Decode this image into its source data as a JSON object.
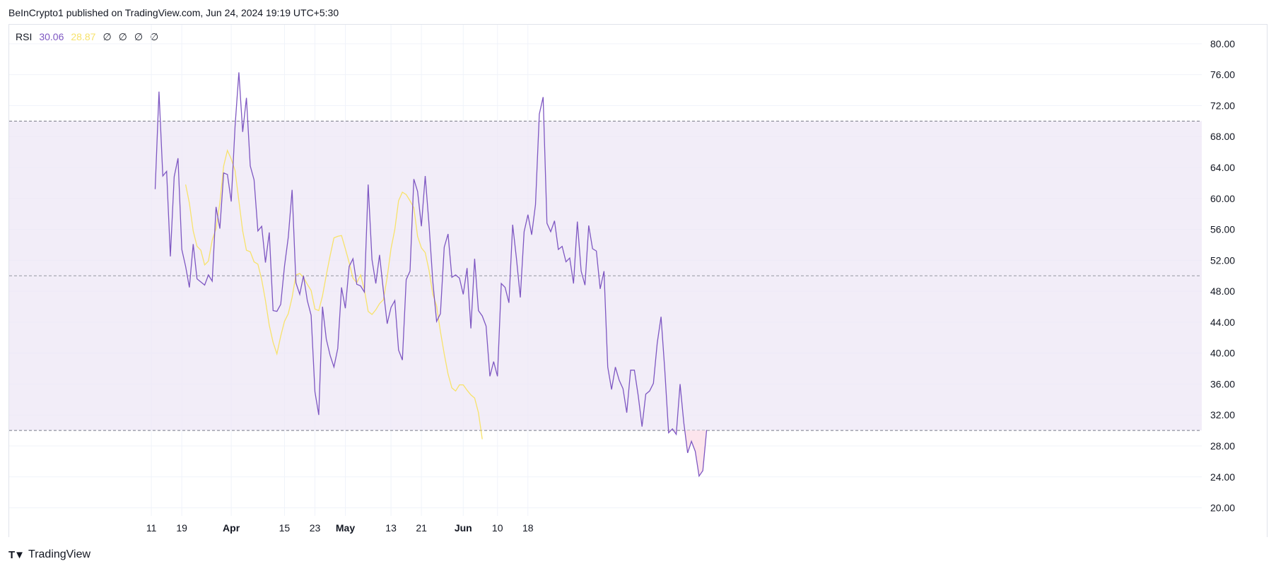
{
  "header": {
    "published": "BeInCrypto1 published on TradingView.com, Jun 24, 2024 19:19 UTC+5:30"
  },
  "legend": {
    "name": "RSI",
    "rsi_value": "30.06",
    "ma_value": "28.87",
    "na_values": [
      "∅",
      "∅",
      "∅",
      "∅"
    ]
  },
  "footer": {
    "brand": "TradingView"
  },
  "colors": {
    "rsi": "#7e57c2",
    "ma": "#f7e26b",
    "band": "#ede7f6",
    "oversold_fill": "#fce4ec"
  },
  "chart_data": {
    "type": "line",
    "title": "RSI",
    "ylim": [
      18.5,
      82
    ],
    "y_ticks": [
      "80.00",
      "76.00",
      "72.00",
      "68.00",
      "64.00",
      "60.00",
      "56.00",
      "52.00",
      "48.00",
      "44.00",
      "40.00",
      "36.00",
      "32.00",
      "28.00",
      "24.00",
      "20.00"
    ],
    "x_ticks": [
      {
        "label": "11",
        "bold": false,
        "i": 3
      },
      {
        "label": "19",
        "bold": false,
        "i": 11
      },
      {
        "label": "Apr",
        "bold": true,
        "i": 24
      },
      {
        "label": "15",
        "bold": false,
        "i": 38
      },
      {
        "label": "23",
        "bold": false,
        "i": 46
      },
      {
        "label": "May",
        "bold": true,
        "i": 54
      },
      {
        "label": "13",
        "bold": false,
        "i": 66
      },
      {
        "label": "21",
        "bold": false,
        "i": 74
      },
      {
        "label": "Jun",
        "bold": true,
        "i": 85
      },
      {
        "label": "10",
        "bold": false,
        "i": 94
      },
      {
        "label": "18",
        "bold": false,
        "i": 102
      }
    ],
    "levels": {
      "upper": 70,
      "middle": 50,
      "lower": 30
    },
    "rsi": {
      "start_index": 4,
      "values": [
        61.2,
        73.8,
        62.9,
        63.5,
        52.5,
        62.8,
        65.2,
        53.4,
        51.2,
        48.5,
        54.1,
        49.6,
        49.2,
        48.8,
        50.1,
        49.3,
        58.9,
        56.1,
        63.3,
        63.1,
        59.6,
        69.3,
        76.3,
        68.6,
        73.0,
        64.2,
        62.4,
        55.8,
        56.4,
        51.7,
        55.6,
        45.5,
        45.4,
        46.3,
        51.2,
        55.0,
        61.1,
        49.1,
        47.6,
        50.0,
        46.8,
        44.9,
        35.0,
        32.0,
        46.0,
        41.8,
        39.7,
        38.2,
        40.6,
        48.5,
        45.8,
        51.2,
        52.2,
        48.9,
        48.7,
        47.9,
        61.8,
        52.1,
        49.0,
        52.7,
        48.1,
        43.8,
        45.9,
        46.8,
        40.4,
        39.1,
        49.5,
        50.6,
        62.5,
        60.9,
        56.4,
        62.9,
        56.6,
        49.2,
        44.1,
        45.1,
        53.7,
        55.4,
        49.8,
        50.1,
        49.7,
        47.6,
        51.0,
        43.2,
        52.2,
        45.5,
        44.8,
        43.5,
        37.0,
        38.9,
        37.0,
        49.0,
        48.5,
        46.5,
        56.6,
        52.2,
        47.2,
        55.7,
        57.9,
        55.3,
        59.2,
        70.9,
        73.1,
        56.8,
        55.7,
        57.1,
        53.4,
        53.8,
        51.8,
        52.3,
        49.0,
        57.0,
        50.6,
        48.8,
        56.5,
        53.5,
        53.2,
        48.3,
        50.6,
        38.2,
        35.3,
        38.2,
        36.5,
        35.4,
        32.3,
        37.8,
        37.8,
        34.5,
        30.5,
        34.7,
        35.1,
        36.1,
        41.3,
        44.7,
        37.8,
        29.7,
        30.2,
        29.5,
        36.0,
        31.0,
        27.1,
        28.6,
        27.3,
        24.1,
        24.8,
        30.06
      ]
    },
    "rsi_ma": {
      "start_index": 12,
      "values": [
        61.8,
        59.4,
        55.8,
        53.8,
        53.3,
        51.4,
        51.9,
        54.6,
        56.1,
        59.4,
        64.2,
        66.2,
        65.1,
        63.6,
        59.7,
        55.8,
        53.3,
        53.1,
        51.8,
        51.5,
        49.5,
        46.8,
        43.6,
        41.4,
        39.9,
        42.2,
        44.1,
        45.1,
        47.2,
        50.1,
        50.3,
        49.8,
        48.9,
        48.1,
        45.7,
        45.5,
        47.4,
        50.1,
        52.6,
        54.9,
        55.1,
        55.2,
        53.5,
        51.7,
        49.7,
        49.1,
        50.1,
        48.2,
        45.4,
        45.0,
        45.6,
        46.4,
        46.9,
        49.8,
        53.5,
        56.0,
        59.7,
        60.8,
        60.5,
        59.7,
        58.8,
        55.1,
        53.6,
        53.0,
        50.7,
        47.6,
        46.1,
        42.8,
        39.9,
        37.3,
        35.5,
        35.1,
        35.9,
        35.9,
        35.2,
        34.6,
        34.2,
        32.3,
        28.87
      ]
    }
  }
}
